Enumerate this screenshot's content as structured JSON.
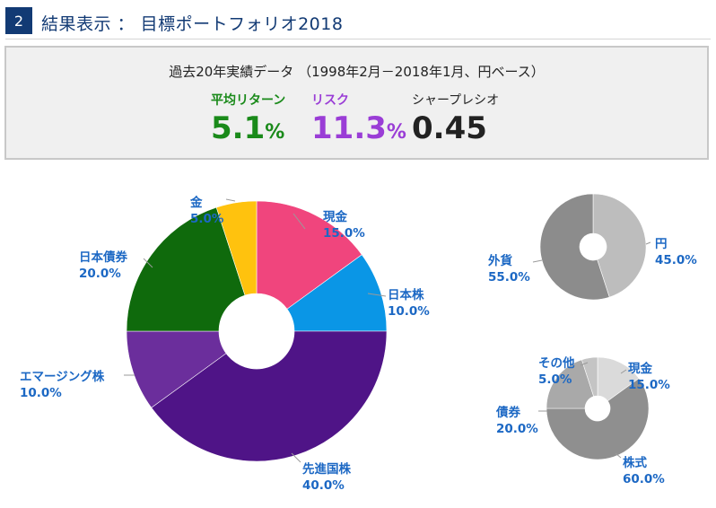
{
  "header": {
    "step": "2",
    "title": "結果表示 ： 目標ポートフォリオ2018"
  },
  "summary": {
    "title": "過去20年実績データ （1998年2月－2018年1月、円ベース）",
    "return_label": "平均リターン",
    "return_value": "5.1",
    "risk_label": "リスク",
    "risk_value": "11.3",
    "sharpe_label": "シャープレシオ",
    "sharpe_value": "0.45",
    "percent_unit": "%",
    "colors": {
      "return": "#1a8a1a",
      "risk": "#9a3dd6",
      "sharpe": "#222222"
    }
  },
  "chart_data": [
    {
      "type": "pie",
      "donut": true,
      "slices": [
        {
          "name": "現金",
          "value": 15.0,
          "label": "15.0%",
          "color": "#f0457d"
        },
        {
          "name": "日本株",
          "value": 10.0,
          "label": "10.0%",
          "color": "#0a96e6"
        },
        {
          "name": "先進国株",
          "value": 40.0,
          "label": "40.0%",
          "color": "#4f1487"
        },
        {
          "name": "エマージング株",
          "value": 10.0,
          "label": "10.0%",
          "color": "#6b2e9c"
        },
        {
          "name": "日本債券",
          "value": 20.0,
          "label": "20.0%",
          "color": "#0f6a0c"
        },
        {
          "name": "金",
          "value": 5.0,
          "label": "5.0%",
          "color": "#ffc20e"
        }
      ]
    },
    {
      "type": "pie",
      "donut": true,
      "slices": [
        {
          "name": "円",
          "value": 45.0,
          "label": "45.0%",
          "color": "#bdbdbd"
        },
        {
          "name": "外貨",
          "value": 55.0,
          "label": "55.0%",
          "color": "#8c8c8c"
        }
      ]
    },
    {
      "type": "pie",
      "donut": true,
      "slices": [
        {
          "name": "現金",
          "value": 15.0,
          "label": "15.0%",
          "color": "#dadada"
        },
        {
          "name": "株式",
          "value": 60.0,
          "label": "60.0%",
          "color": "#8f8f8f"
        },
        {
          "name": "債券",
          "value": 20.0,
          "label": "20.0%",
          "color": "#a9a9a9"
        },
        {
          "name": "その他",
          "value": 5.0,
          "label": "5.0%",
          "color": "#c4c4c4"
        }
      ]
    }
  ]
}
